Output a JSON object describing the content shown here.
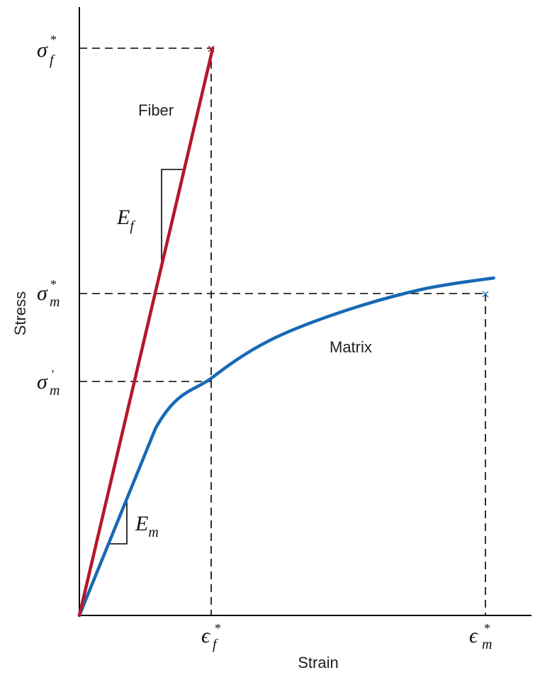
{
  "chart_data": {
    "type": "line",
    "xlabel": "Strain",
    "ylabel": "Stress",
    "xlim": [
      0,
      1
    ],
    "ylim": [
      0,
      1
    ],
    "colors": {
      "fiber": "#b5172b",
      "matrix": "#1769b5"
    },
    "series": [
      {
        "name": "Fiber",
        "x": [
          0,
          0.28
        ],
        "y": [
          0,
          1.0
        ]
      },
      {
        "name": "Matrix",
        "x": [
          0,
          0.16,
          0.28,
          0.4,
          0.55,
          0.72,
          0.87
        ],
        "y": [
          0,
          0.33,
          0.42,
          0.485,
          0.535,
          0.575,
          0.595
        ]
      }
    ],
    "annotations": {
      "E_f": {
        "main": "E",
        "sub": "f"
      },
      "E_m": {
        "main": "E",
        "sub": "m"
      },
      "sigma_f_star": {
        "main": "σ",
        "sub": "f",
        "sup": "*"
      },
      "sigma_m_star": {
        "main": "σ",
        "sub": "m",
        "sup": "*"
      },
      "sigma_m_prime": {
        "main": "σ",
        "sub": "m",
        "sup": "'"
      },
      "eps_f_star": {
        "main": "ϵ",
        "sub": "f",
        "sup": "*"
      },
      "eps_m_star": {
        "main": "ϵ",
        "sub": "m",
        "sup": "*"
      },
      "break_mark": "×"
    }
  }
}
